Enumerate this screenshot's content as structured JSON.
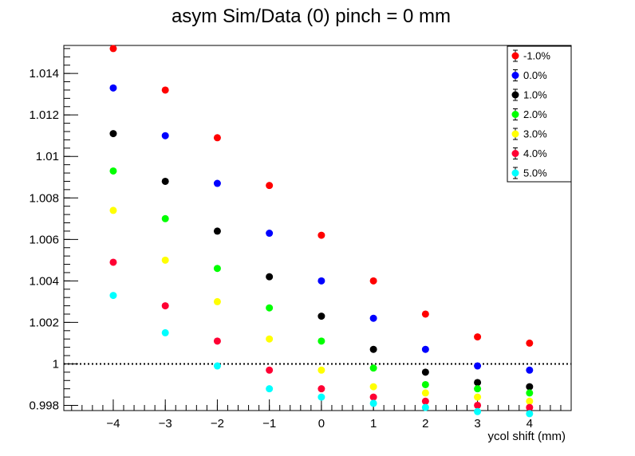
{
  "chart_data": {
    "type": "scatter",
    "title": "asym Sim/Data (0) pinch = 0 mm",
    "xlabel": "ycol shift (mm)",
    "ylabel": "",
    "xlim": [
      -4.95,
      4.8
    ],
    "ylim": [
      0.99775,
      1.01535
    ],
    "x_ticks": [
      -4,
      -3,
      -2,
      -1,
      0,
      1,
      2,
      3,
      4
    ],
    "x_tick_labels": [
      "−4",
      "−3",
      "−2",
      "−1",
      "0",
      "1",
      "2",
      "3",
      "4"
    ],
    "y_ticks": [
      0.998,
      1.0,
      1.002,
      1.004,
      1.006,
      1.008,
      1.01,
      1.012,
      1.014
    ],
    "y_tick_labels": [
      "0.998",
      "1",
      "1.002",
      "1.004",
      "1.006",
      "1.008",
      "1.01",
      "1.012",
      "1.014"
    ],
    "reference_line": 1.0,
    "legend_position": "top-right",
    "x": [
      -4,
      -3,
      -2,
      -1,
      0,
      1,
      2,
      3,
      4
    ],
    "series": [
      {
        "name": "-1.0%",
        "color": "#ff0000",
        "values": [
          1.0152,
          1.0132,
          1.0109,
          1.0086,
          1.0062,
          1.004,
          1.0024,
          1.0013,
          1.001
        ]
      },
      {
        "name": "0.0%",
        "color": "#0000ff",
        "values": [
          1.0133,
          1.011,
          1.0087,
          1.0063,
          1.004,
          1.0022,
          1.0007,
          0.9999,
          0.9997
        ]
      },
      {
        "name": "1.0%",
        "color": "#000000",
        "values": [
          1.0111,
          1.0088,
          1.0064,
          1.0042,
          1.0023,
          1.0007,
          0.9996,
          0.9991,
          0.9989
        ]
      },
      {
        "name": "2.0%",
        "color": "#00ff00",
        "values": [
          1.0093,
          1.007,
          1.0046,
          1.0027,
          1.0011,
          0.9998,
          0.999,
          0.9988,
          0.9986
        ]
      },
      {
        "name": "3.0%",
        "color": "#ffff00",
        "values": [
          1.0074,
          1.005,
          1.003,
          1.0012,
          0.9997,
          0.9989,
          0.9986,
          0.9984,
          0.9982
        ]
      },
      {
        "name": "4.0%",
        "color": "#ff0033",
        "values": [
          1.0049,
          1.0028,
          1.0011,
          0.9997,
          0.9988,
          0.9984,
          0.9982,
          0.998,
          0.9979
        ]
      },
      {
        "name": "5.0%",
        "color": "#00ffff",
        "values": [
          1.0033,
          1.0015,
          0.9999,
          0.9988,
          0.9984,
          0.9981,
          0.9979,
          0.9977,
          0.9976
        ]
      }
    ]
  }
}
